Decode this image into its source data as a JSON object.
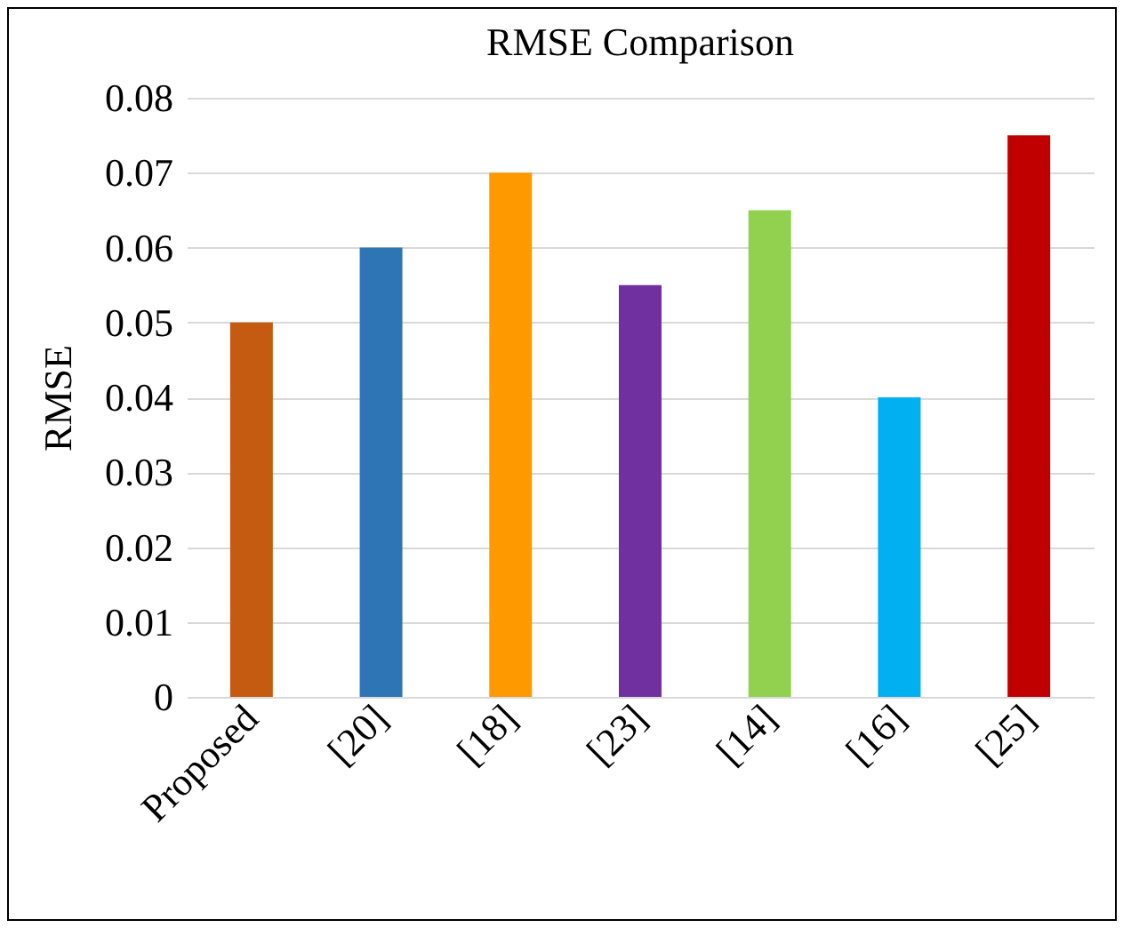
{
  "chart_data": {
    "type": "bar",
    "title": "RMSE Comparison",
    "ylabel": "RMSE",
    "categories": [
      "Proposed",
      "[20]",
      "[18]",
      "[23]",
      "[14]",
      "[16]",
      "[25]"
    ],
    "values": [
      0.05,
      0.06,
      0.07,
      0.055,
      0.065,
      0.04,
      0.075
    ],
    "colors": [
      "#c55a11",
      "#2e75b6",
      "#ff9900",
      "#7030a0",
      "#92d050",
      "#00b0f0",
      "#c00000"
    ],
    "ylim": [
      0,
      0.08
    ],
    "yticks": [
      0,
      0.01,
      0.02,
      0.03,
      0.04,
      0.05,
      0.06,
      0.07,
      0.08
    ],
    "grid": true,
    "legend": false
  }
}
